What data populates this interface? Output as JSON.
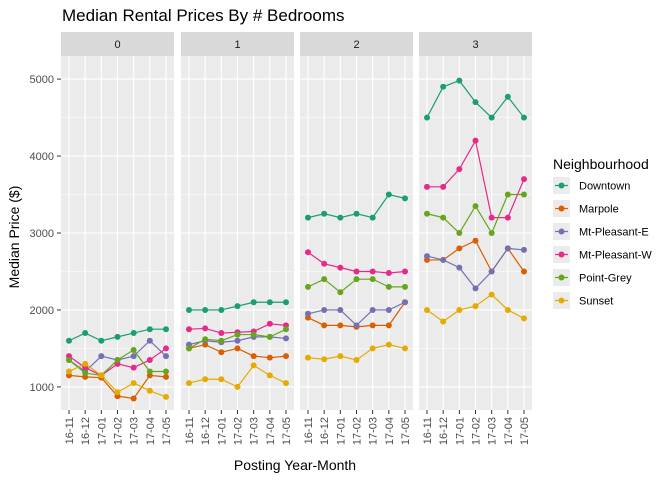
{
  "chart_data": {
    "type": "line",
    "title": "Median Rental Prices By # Bedrooms",
    "xlabel": "Posting Year-Month",
    "ylabel": "Median Price ($)",
    "ylim": [
      700,
      5300
    ],
    "y_ticks": [
      1000,
      2000,
      3000,
      4000,
      5000
    ],
    "grid": true,
    "legend_title": "Neighbourhood",
    "legend_position": "right",
    "categories": [
      "16-11",
      "16-12",
      "17-01",
      "17-02",
      "17-03",
      "17-04",
      "17-05"
    ],
    "facets": [
      {
        "label": "0",
        "series": [
          {
            "name": "Downtown",
            "values": [
              1600,
              1700,
              1600,
              1650,
              1700,
              1750,
              1750
            ]
          },
          {
            "name": "Marpole",
            "values": [
              1150,
              1130,
              1120,
              880,
              850,
              1150,
              1130
            ]
          },
          {
            "name": "Mt-Pleasant-E",
            "values": [
              1350,
              1200,
              1400,
              1350,
              1400,
              1600,
              1400
            ]
          },
          {
            "name": "Mt-Pleasant-W",
            "values": [
              1400,
              1250,
              1150,
              1300,
              1250,
              1350,
              1500
            ]
          },
          {
            "name": "Point-Grey",
            "values": [
              1350,
              1180,
              1150,
              1350,
              1480,
              1200,
              1200
            ]
          },
          {
            "name": "Sunset",
            "values": [
              1200,
              1300,
              1150,
              930,
              1050,
              950,
              870
            ]
          }
        ]
      },
      {
        "label": "1",
        "series": [
          {
            "name": "Downtown",
            "values": [
              2000,
              2000,
              2000,
              2050,
              2100,
              2100,
              2100
            ]
          },
          {
            "name": "Marpole",
            "values": [
              1500,
              1550,
              1450,
              1500,
              1400,
              1380,
              1400
            ]
          },
          {
            "name": "Mt-Pleasant-E",
            "values": [
              1550,
              1600,
              1580,
              1600,
              1650,
              1650,
              1630
            ]
          },
          {
            "name": "Mt-Pleasant-W",
            "values": [
              1750,
              1760,
              1700,
              1710,
              1720,
              1820,
              1800
            ]
          },
          {
            "name": "Point-Grey",
            "values": [
              1500,
              1620,
              1600,
              1680,
              1680,
              1650,
              1750
            ]
          },
          {
            "name": "Sunset",
            "values": [
              1050,
              1100,
              1100,
              1000,
              1280,
              1150,
              1050
            ]
          }
        ]
      },
      {
        "label": "2",
        "series": [
          {
            "name": "Downtown",
            "values": [
              3200,
              3250,
              3200,
              3250,
              3200,
              3500,
              3450
            ]
          },
          {
            "name": "Marpole",
            "values": [
              1900,
              1800,
              1800,
              1780,
              1800,
              1800,
              2100
            ]
          },
          {
            "name": "Mt-Pleasant-E",
            "values": [
              1950,
              2000,
              2000,
              1800,
              2000,
              2000,
              2100
            ]
          },
          {
            "name": "Mt-Pleasant-W",
            "values": [
              2750,
              2600,
              2550,
              2500,
              2500,
              2480,
              2500
            ]
          },
          {
            "name": "Point-Grey",
            "values": [
              2300,
              2400,
              2230,
              2400,
              2400,
              2300,
              2300
            ]
          },
          {
            "name": "Sunset",
            "values": [
              1380,
              1360,
              1400,
              1350,
              1500,
              1550,
              1500
            ]
          }
        ]
      },
      {
        "label": "3",
        "series": [
          {
            "name": "Downtown",
            "values": [
              4500,
              4900,
              4980,
              4700,
              4500,
              4770,
              4500
            ]
          },
          {
            "name": "Marpole",
            "values": [
              2650,
              2650,
              2800,
              2900,
              2500,
              2800,
              2500
            ]
          },
          {
            "name": "Mt-Pleasant-E",
            "values": [
              2700,
              2650,
              2550,
              2280,
              2500,
              2800,
              2780
            ]
          },
          {
            "name": "Mt-Pleasant-W",
            "values": [
              3600,
              3600,
              3830,
              4200,
              3200,
              3200,
              3700
            ]
          },
          {
            "name": "Point-Grey",
            "values": [
              3250,
              3200,
              3000,
              3350,
              3000,
              3500,
              3500
            ]
          },
          {
            "name": "Sunset",
            "values": [
              2000,
              1850,
              2000,
              2050,
              2200,
              2000,
              1890
            ]
          }
        ]
      }
    ],
    "colors": {
      "Downtown": "#1b9e77",
      "Marpole": "#d95f02",
      "Mt-Pleasant-E": "#7570b3",
      "Mt-Pleasant-W": "#e7298a",
      "Point-Grey": "#66a61e",
      "Sunset": "#e6ab02"
    },
    "panel_bg": "#ebebeb",
    "strip_bg": "#d9d9d9"
  }
}
